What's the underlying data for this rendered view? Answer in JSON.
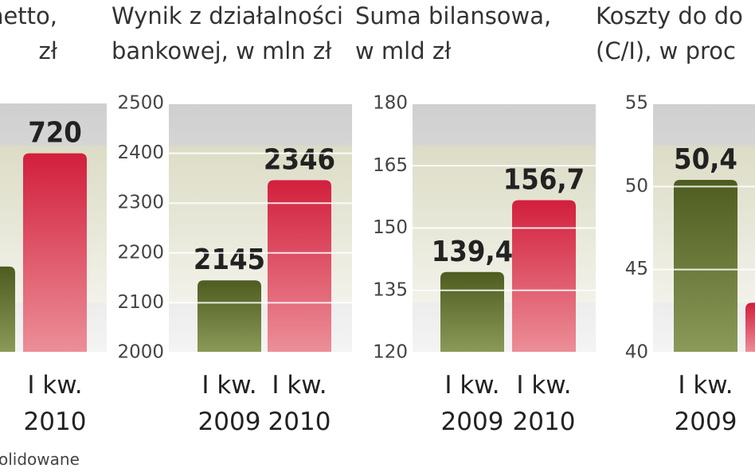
{
  "note": "olidowane",
  "chart_data": [
    {
      "type": "bar",
      "title": [
        "netto,",
        "zł"
      ],
      "categories": [
        null,
        [
          "I kw.",
          "2010"
        ]
      ],
      "series": [
        {
          "colors": [
            "#5c6b2a",
            "#d42a45"
          ],
          "values": [
            311,
            720
          ],
          "value_labels": [
            null,
            "720"
          ]
        }
      ]
    },
    {
      "type": "bar",
      "title": [
        "Wynik z działalności",
        "bankowej, w mln zł"
      ],
      "categories": [
        [
          "I kw.",
          "2009"
        ],
        [
          "I kw.",
          "2010"
        ]
      ],
      "series": [
        {
          "colors": [
            "#5c6b2a",
            "#d42a45"
          ],
          "values": [
            2145,
            2346
          ],
          "value_labels": [
            "2145",
            "2346"
          ]
        }
      ],
      "ylim": [
        2000,
        2500
      ],
      "yticks": [
        2000,
        2100,
        2200,
        2300,
        2400,
        2500
      ],
      "grid": true
    },
    {
      "type": "bar",
      "title": [
        "Suma bilansowa,",
        "w mld zł"
      ],
      "categories": [
        [
          "I kw.",
          "2009"
        ],
        [
          "I kw.",
          "2010"
        ]
      ],
      "series": [
        {
          "colors": [
            "#5c6b2a",
            "#d42a45"
          ],
          "values": [
            139.4,
            156.7
          ],
          "value_labels": [
            "139,4",
            "156,7"
          ]
        }
      ],
      "ylim": [
        120,
        180
      ],
      "yticks": [
        120,
        135,
        150,
        165,
        180
      ],
      "grid": true
    },
    {
      "type": "bar",
      "title": [
        "Koszty do do",
        "(C/I), w proc"
      ],
      "categories": [
        [
          "I kw.",
          "2009"
        ],
        null
      ],
      "series": [
        {
          "colors": [
            "#5c6b2a",
            "#d42a45"
          ],
          "values": [
            50.4,
            43.0
          ],
          "value_labels": [
            "50,4",
            null
          ]
        }
      ],
      "ylim": [
        40,
        55
      ],
      "yticks": [
        40,
        45,
        50,
        55
      ],
      "grid": true
    }
  ]
}
